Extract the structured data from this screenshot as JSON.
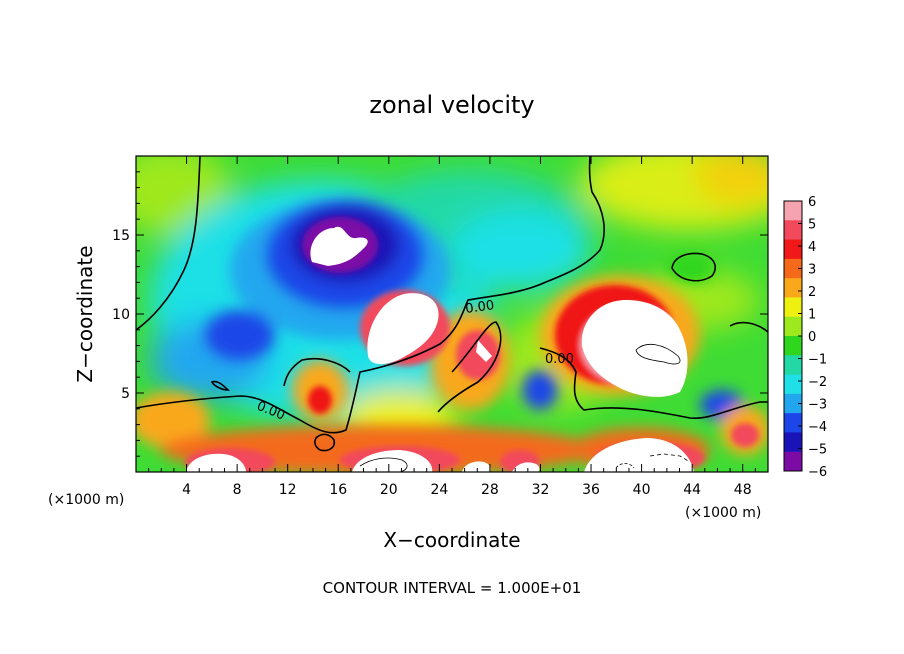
{
  "chart_data": {
    "type": "heatmap",
    "title": "zonal velocity",
    "xlabel": "X−coordinate",
    "ylabel": "Z−coordinate",
    "x_unit_left": "(×1000 m)",
    "x_unit_right": "(×1000 m)",
    "footer": "CONTOUR INTERVAL = 1.000E+01",
    "xlim": [
      0,
      50
    ],
    "ylim": [
      0,
      20
    ],
    "x_ticks": [
      4,
      8,
      12,
      16,
      20,
      24,
      28,
      32,
      36,
      40,
      44,
      48
    ],
    "y_ticks": [
      5,
      10,
      15
    ],
    "colorbar": {
      "levels": [
        6,
        5,
        4,
        3,
        2,
        1,
        0,
        -1,
        -2,
        -3,
        -4,
        -5,
        -6
      ],
      "labels": [
        "6",
        "5",
        "4",
        "3",
        "2",
        "1",
        "0",
        "−1",
        "−2",
        "−3",
        "−4",
        "−5",
        "−6"
      ],
      "colors": [
        "#f6a3b0",
        "#f24a5c",
        "#f01818",
        "#f46a1a",
        "#f9a81b",
        "#eef010",
        "#9ee81e",
        "#2ed61e",
        "#22d9a6",
        "#1fe0e6",
        "#22a7ef",
        "#1c46e8",
        "#1a14b8",
        "#7c0ba6"
      ]
    },
    "contour_labels": [
      "0.00",
      "0.00",
      "0.00"
    ],
    "field_description": "Zonal velocity (m/s) on an x–z cross-section: strong negative core (< −6) near x≈18, z≈14; strong positive (> 6) regions near x≈19, z≈9, x≈40, z≈8 and along the surface layer; near-zero values elsewhere with 0.00 contours."
  }
}
